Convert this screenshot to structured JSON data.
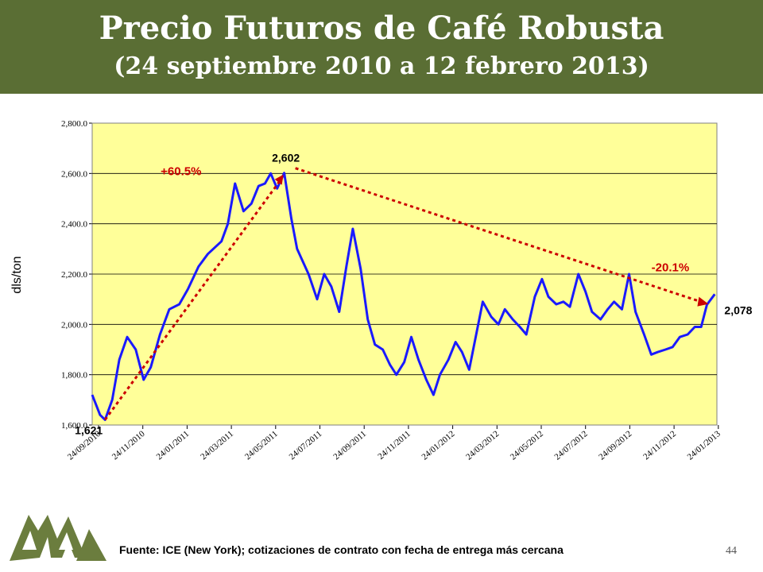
{
  "header": {
    "title": "Precio Futuros de Café Robusta",
    "subtitle": "(24 septiembre 2010 a 12 febrero 2013)"
  },
  "chart_data": {
    "type": "line",
    "ylabel": "dls/ton",
    "ylim": [
      1600,
      2800
    ],
    "yticks": [
      "1,600.0",
      "1,800.0",
      "2,000.0",
      "2,200.0",
      "2,400.0",
      "2,600.0",
      "2,800.0"
    ],
    "xticks": [
      "24/09/2010",
      "24/11/2010",
      "24/01/2011",
      "24/03/2011",
      "24/05/2011",
      "24/07/2011",
      "24/09/2011",
      "24/11/2011",
      "24/01/2012",
      "24/03/2012",
      "24/05/2012",
      "24/07/2012",
      "24/09/2012",
      "24/11/2012",
      "24/01/2013"
    ],
    "series": [
      {
        "color": "#1a1aff",
        "x": [
          "2010-09-24",
          "2010-10-05",
          "2010-10-12",
          "2010-10-22",
          "2010-11-01",
          "2010-11-12",
          "2010-11-24",
          "2010-12-05",
          "2010-12-15",
          "2010-12-28",
          "2011-01-10",
          "2011-01-24",
          "2011-02-05",
          "2011-02-20",
          "2011-03-05",
          "2011-03-24",
          "2011-04-02",
          "2011-04-12",
          "2011-04-24",
          "2011-05-05",
          "2011-05-15",
          "2011-05-24",
          "2011-06-01",
          "2011-06-10",
          "2011-06-20",
          "2011-06-30",
          "2011-07-08",
          "2011-07-24",
          "2011-08-05",
          "2011-08-15",
          "2011-08-25",
          "2011-09-05",
          "2011-09-15",
          "2011-09-24",
          "2011-10-05",
          "2011-10-15",
          "2011-10-25",
          "2011-11-05",
          "2011-11-15",
          "2011-11-24",
          "2011-12-05",
          "2011-12-15",
          "2011-12-25",
          "2012-01-05",
          "2012-01-15",
          "2012-01-24",
          "2012-02-05",
          "2012-02-15",
          "2012-02-24",
          "2012-03-05",
          "2012-03-24",
          "2012-04-05",
          "2012-04-15",
          "2012-04-24",
          "2012-05-05",
          "2012-05-15",
          "2012-05-24",
          "2012-06-05",
          "2012-06-15",
          "2012-06-24",
          "2012-07-05",
          "2012-07-15",
          "2012-07-24",
          "2012-08-05",
          "2012-08-15",
          "2012-08-24",
          "2012-09-05",
          "2012-09-15",
          "2012-09-24",
          "2012-10-05",
          "2012-10-15",
          "2012-10-24",
          "2012-11-05",
          "2012-11-15",
          "2012-11-24",
          "2012-12-05",
          "2012-12-15",
          "2012-12-25",
          "2013-01-05",
          "2013-01-15",
          "2013-01-24",
          "2013-02-01",
          "2013-02-12"
        ],
        "values": [
          1720,
          1640,
          1621,
          1700,
          1860,
          1950,
          1900,
          1780,
          1830,
          1960,
          2060,
          2080,
          2140,
          2230,
          2280,
          2330,
          2400,
          2560,
          2450,
          2480,
          2550,
          2560,
          2600,
          2540,
          2602,
          2420,
          2300,
          2200,
          2100,
          2200,
          2150,
          2050,
          2230,
          2380,
          2220,
          2020,
          1920,
          1900,
          1840,
          1800,
          1850,
          1950,
          1860,
          1780,
          1720,
          1800,
          1860,
          1930,
          1890,
          1820,
          2090,
          2030,
          2000,
          2060,
          2020,
          1990,
          1960,
          2110,
          2180,
          2110,
          2080,
          2090,
          2070,
          2200,
          2130,
          2050,
          2020,
          2060,
          2090,
          2060,
          2200,
          2050,
          1960,
          1880,
          1890,
          1900,
          1910,
          1950,
          1960,
          1990,
          1990,
          2078,
          2120
        ]
      }
    ],
    "annotations": [
      {
        "text": "+60.5%",
        "color": "#cc0000"
      },
      {
        "text": "2,602",
        "color": "#000000"
      },
      {
        "text": "-20.1%",
        "color": "#cc0000"
      },
      {
        "text": "2,078",
        "color": "#000000"
      },
      {
        "text": "1,621",
        "color": "#000000"
      }
    ],
    "plot_background": "#ffff99",
    "trend_color": "#cc0000"
  },
  "footer": {
    "source": "Fuente: ICE (New York); cotizaciones de contrato con fecha de entrega más cercana",
    "page": "44"
  },
  "colors": {
    "header_bg": "#5a6e34",
    "logo": "#6b7d3e"
  }
}
